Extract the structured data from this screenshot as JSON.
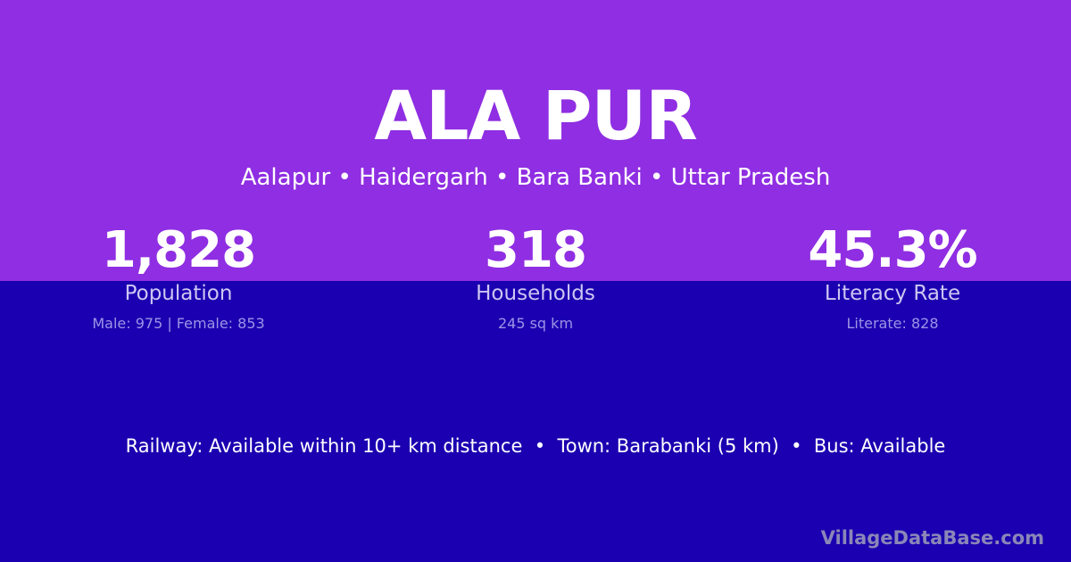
{
  "header": {
    "title": "ALA PUR",
    "subtitle": "Aalapur • Haidergarh • Bara Banki • Uttar Pradesh"
  },
  "stats": [
    {
      "value": "1,828",
      "label": "Population",
      "sub": "Male: 975 | Female: 853"
    },
    {
      "value": "318",
      "label": "Households",
      "sub": "245 sq km"
    },
    {
      "value": "45.3%",
      "label": "Literacy Rate",
      "sub": "Literate: 828"
    }
  ],
  "facilities": "Railway: Available within 10+ km distance  •  Town: Barabanki (5 km)  •  Bus: Available",
  "brand": "VillageDataBase.com",
  "colors": {
    "top": "#8f2ee2",
    "bottom": "#1a00b0"
  }
}
